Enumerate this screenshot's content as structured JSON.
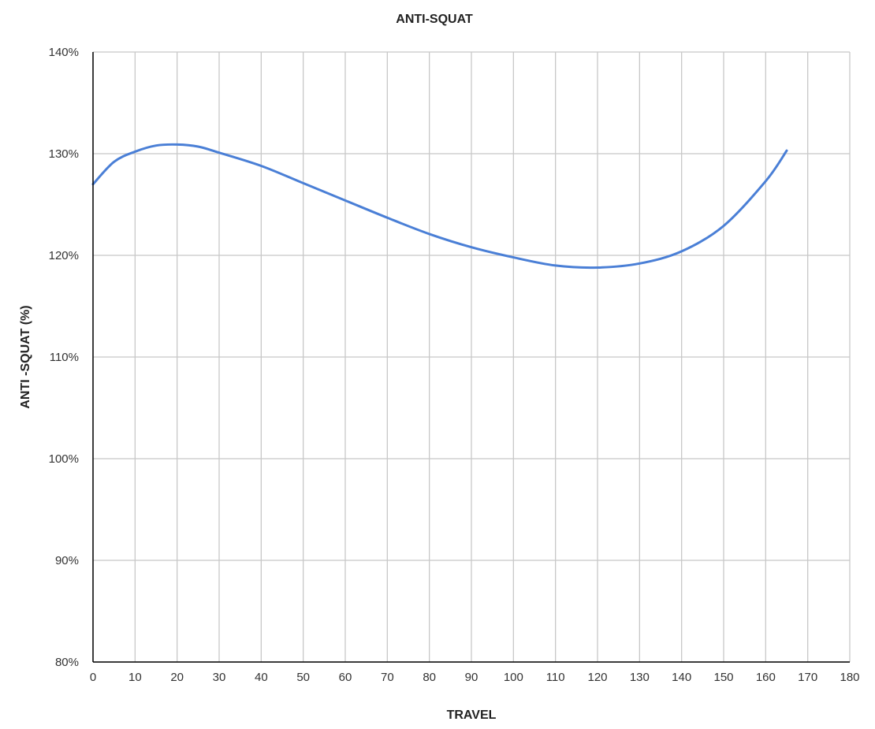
{
  "chart_data": {
    "type": "line",
    "title": "ANTI-SQUAT",
    "xlabel": "TRAVEL",
    "ylabel": "ANTI -SQUAT (%)",
    "xlim": [
      0,
      180
    ],
    "ylim": [
      80,
      140
    ],
    "x_ticks": [
      0,
      10,
      20,
      30,
      40,
      50,
      60,
      70,
      80,
      90,
      100,
      110,
      120,
      130,
      140,
      150,
      160,
      170,
      180
    ],
    "y_ticks": [
      80,
      90,
      100,
      110,
      120,
      130,
      140
    ],
    "y_tick_format": "%",
    "grid": true,
    "legend": "none",
    "series": [
      {
        "color": "#4a7fd6",
        "x": [
          0,
          5,
          10,
          15,
          20,
          25,
          30,
          40,
          50,
          60,
          70,
          80,
          90,
          100,
          110,
          120,
          130,
          140,
          150,
          160,
          165
        ],
        "y": [
          127.0,
          129.2,
          130.2,
          130.8,
          130.9,
          130.7,
          130.1,
          128.8,
          127.1,
          125.4,
          123.7,
          122.1,
          120.8,
          119.8,
          119.0,
          118.8,
          119.2,
          120.4,
          122.9,
          127.3,
          130.3
        ]
      }
    ]
  }
}
